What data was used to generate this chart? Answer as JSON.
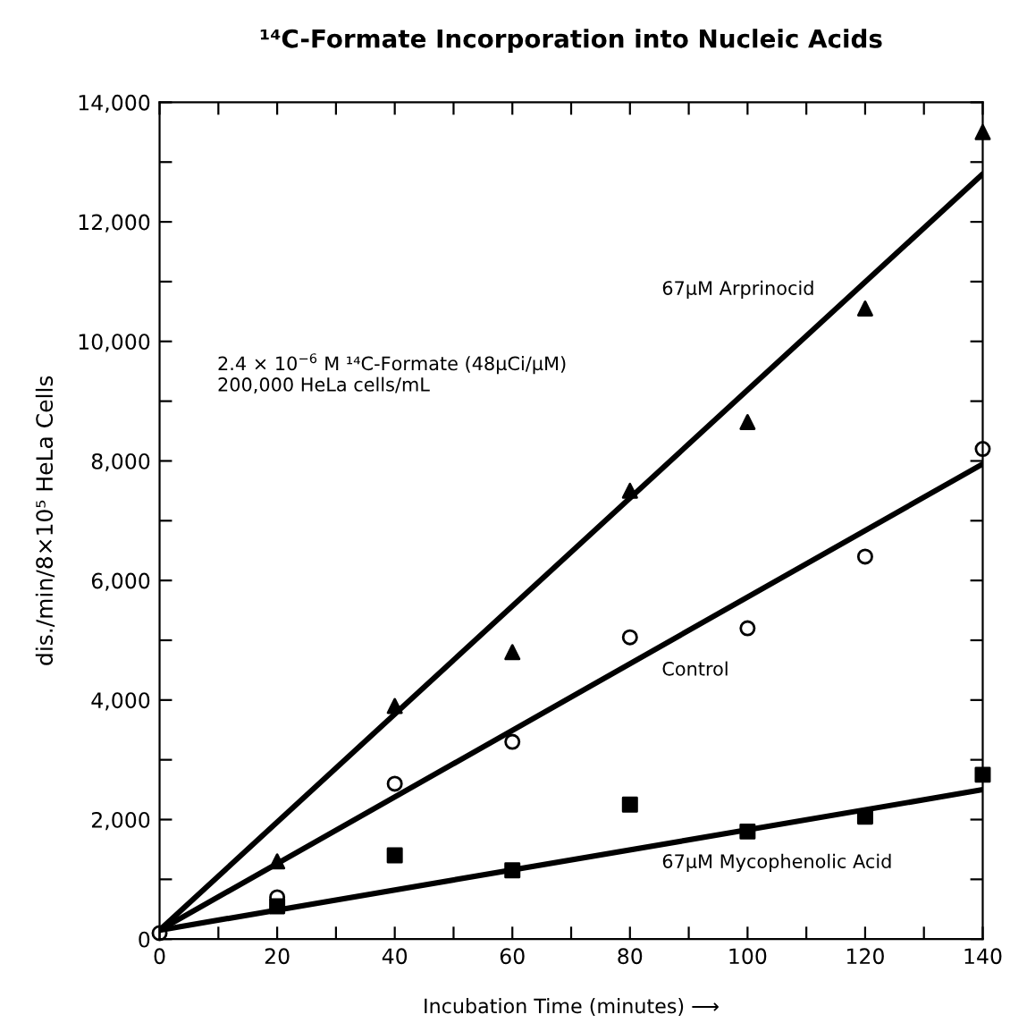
{
  "chart_data": {
    "type": "scatter",
    "title": "¹⁴C-Formate Incorporation into Nucleic Acids",
    "xlabel": "Incubation Time (minutes) ⟶",
    "ylabel": "dis./min/8×10⁵ HeLa Cells",
    "xlim": [
      0,
      140
    ],
    "ylim": [
      0,
      14000
    ],
    "xticks": [
      0,
      {
        "value": 10,
        "label": null
      },
      20,
      {
        "value": 30,
        "label": null
      },
      40,
      {
        "value": 50,
        "label": null
      },
      60,
      {
        "value": 70,
        "label": null
      },
      80,
      {
        "value": 90,
        "label": null
      },
      100,
      {
        "value": 110,
        "label": null
      },
      120,
      {
        "value": 130,
        "label": null
      },
      140
    ],
    "yticks": [
      {
        "value": 0,
        "label": "0"
      },
      {
        "value": 1000,
        "label": null
      },
      {
        "value": 2000,
        "label": "2,000"
      },
      {
        "value": 3000,
        "label": null
      },
      {
        "value": 4000,
        "label": "4,000"
      },
      {
        "value": 5000,
        "label": null
      },
      {
        "value": 6000,
        "label": "6,000"
      },
      {
        "value": 7000,
        "label": null
      },
      {
        "value": 8000,
        "label": "8,000"
      },
      {
        "value": 9000,
        "label": null
      },
      {
        "value": 10000,
        "label": "10,000"
      },
      {
        "value": 11000,
        "label": null
      },
      {
        "value": 12000,
        "label": "12,000"
      },
      {
        "value": 13000,
        "label": null
      },
      {
        "value": 14000,
        "label": "14,000"
      }
    ],
    "grid": false,
    "legend": false,
    "series": [
      {
        "type": "scatter",
        "marker": "triangle",
        "color": "#000000",
        "x": [
          20,
          40,
          60,
          80,
          100,
          120,
          140
        ],
        "values": [
          1300,
          3900,
          4800,
          7500,
          8650,
          10550,
          13500
        ]
      },
      {
        "type": "scatter",
        "marker": "circle",
        "color": "#000000",
        "x": [
          0,
          20,
          40,
          60,
          80,
          100,
          120,
          140
        ],
        "values": [
          100,
          700,
          2600,
          3300,
          5050,
          5200,
          6400,
          8200
        ]
      },
      {
        "type": "scatter",
        "marker": "square",
        "color": "#000000",
        "x": [
          20,
          40,
          60,
          80,
          100,
          120,
          140
        ],
        "values": [
          550,
          1400,
          1150,
          2250,
          1800,
          2050,
          2750
        ]
      },
      {
        "type": "line",
        "name": "67μM Arprinocid",
        "marker": "none",
        "color": "#000000",
        "x": [
          0,
          140
        ],
        "values": [
          150,
          12800
        ]
      },
      {
        "type": "line",
        "name": "Control",
        "marker": "none",
        "color": "#000000",
        "x": [
          0,
          140
        ],
        "values": [
          150,
          7950
        ]
      },
      {
        "type": "line",
        "name": "67μM Mycophenolic Acid",
        "marker": "none",
        "color": "#000000",
        "x": [
          0,
          140
        ],
        "values": [
          150,
          2500
        ]
      }
    ],
    "annotations": [
      "2.4 × 10$^{−6}$ M ¹⁴C-Formate (48μCi/μM)\n200,000 HeLa cells/mL"
    ]
  }
}
